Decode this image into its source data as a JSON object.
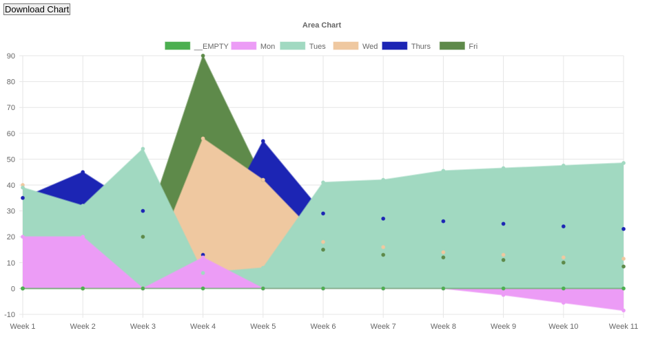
{
  "button": {
    "download_label": "Download Chart"
  },
  "chart_data": {
    "type": "area",
    "title": "Area Chart",
    "categories": [
      "Week 1",
      "Week 2",
      "Week 3",
      "Week 4",
      "Week 5",
      "Week 6",
      "Week 7",
      "Week 8",
      "Week 9",
      "Week 10",
      "Week 11"
    ],
    "ylim": [
      -10,
      90
    ],
    "yticks": [
      -10,
      0,
      10,
      20,
      30,
      40,
      50,
      60,
      70,
      80,
      90
    ],
    "grid": true,
    "legend_position": "top",
    "series": [
      {
        "name": "__EMPTY",
        "color": "#4caf50",
        "values": [
          0,
          0,
          0,
          0,
          0,
          0,
          0,
          0,
          0,
          0,
          0
        ]
      },
      {
        "name": "Mon",
        "color": "#ec9cf6",
        "values": [
          20,
          20,
          0,
          12,
          0,
          0,
          0,
          0,
          -2.5,
          -5.5,
          -8.5
        ]
      },
      {
        "name": "Tues",
        "color": "#a1d9c1",
        "values": [
          39,
          32,
          54,
          6,
          8,
          41,
          42,
          45.5,
          46.5,
          47.5,
          48.5
        ]
      },
      {
        "name": "Wed",
        "color": "#efc8a0",
        "values": [
          40,
          0,
          0,
          58,
          42,
          18,
          16,
          14,
          13,
          12,
          11.5
        ]
      },
      {
        "name": "Thurs",
        "color": "#1c25b4",
        "values": [
          35,
          45,
          30,
          13,
          57,
          29,
          27,
          26,
          25,
          24,
          23
        ]
      },
      {
        "name": "Fri",
        "color": "#5e8a4a",
        "values": [
          0,
          0,
          20,
          90,
          42,
          15,
          13,
          12,
          11,
          10,
          8.5
        ]
      }
    ]
  }
}
